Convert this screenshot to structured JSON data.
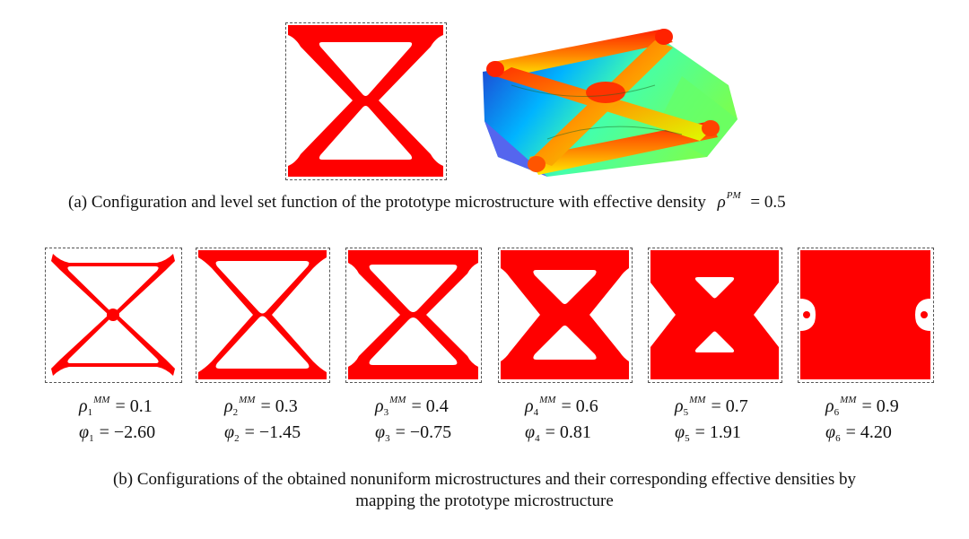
{
  "panel_a": {
    "caption_text": "(a) Configuration and level set function of the prototype microstructure with effective density",
    "density_symbol": "ρ",
    "density_superscript": "PM",
    "density_value": "= 0.5",
    "colors": {
      "material": "#ff0000",
      "frame": "#555555"
    }
  },
  "panel_b": {
    "caption_line1": "(b) Configurations of the obtained nonuniform microstructures and their corresponding effective densities by",
    "caption_line2": "mapping the prototype microstructure",
    "cells": [
      {
        "rho_sub": "1",
        "rho_sup": "MM",
        "rho_val": "= 0.1",
        "phi_sub": "1",
        "phi_val": "= −2.60"
      },
      {
        "rho_sub": "2",
        "rho_sup": "MM",
        "rho_val": "= 0.3",
        "phi_sub": "2",
        "phi_val": "= −1.45"
      },
      {
        "rho_sub": "3",
        "rho_sup": "MM",
        "rho_val": "= 0.4",
        "phi_sub": "3",
        "phi_val": "= −0.75"
      },
      {
        "rho_sub": "4",
        "rho_sup": "MM",
        "rho_val": "= 0.6",
        "phi_sub": "4",
        "phi_val": "= 0.81"
      },
      {
        "rho_sub": "5",
        "rho_sup": "MM",
        "rho_val": "= 0.7",
        "phi_sub": "5",
        "phi_val": "= 1.91"
      },
      {
        "rho_sub": "6",
        "rho_sup": "MM",
        "rho_val": "= 0.9",
        "phi_sub": "6",
        "phi_val": "= 4.20"
      }
    ]
  },
  "symbols": {
    "rho": "ρ",
    "phi": "φ"
  }
}
